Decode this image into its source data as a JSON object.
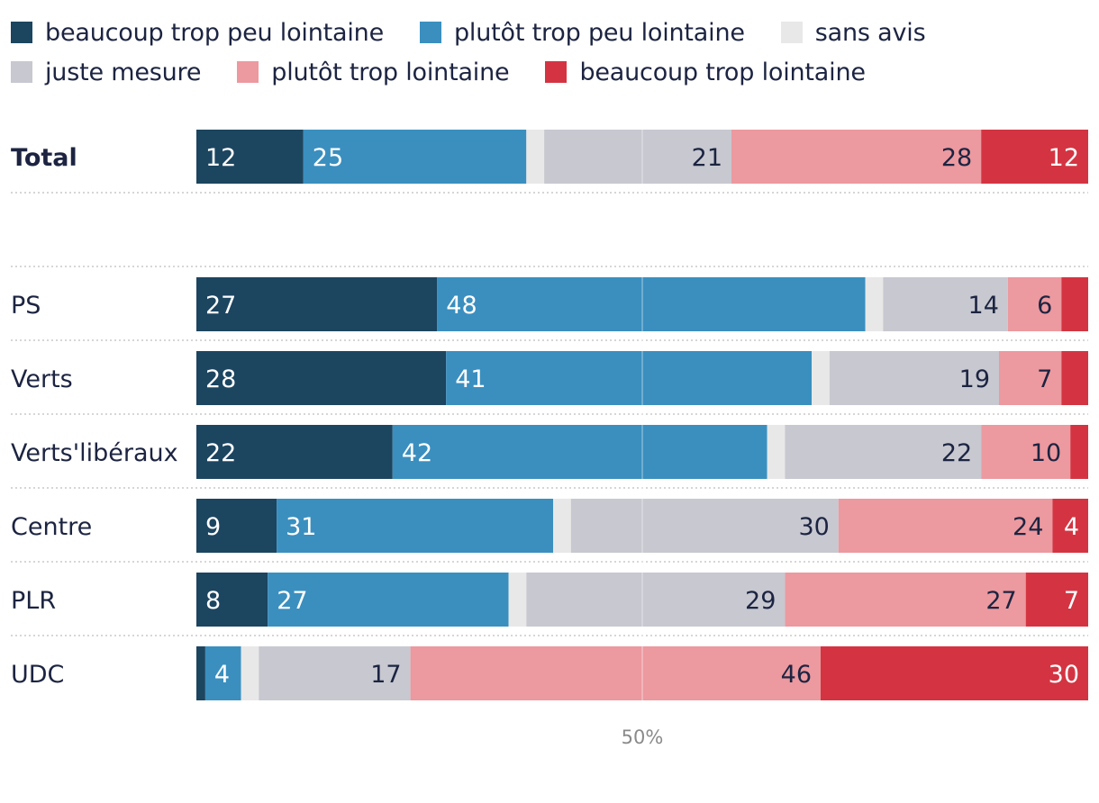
{
  "chart_data": {
    "type": "bar",
    "orientation": "horizontal-stacked",
    "categories": [
      "beaucoup trop peu lointaine",
      "plutôt trop peu lointaine",
      "sans avis",
      "juste mesure",
      "plutôt trop lointaine",
      "beaucoup trop lointaine"
    ],
    "colors": [
      "#1c4560",
      "#3a8fbf",
      "#e8e8e8",
      "#c7c8d0",
      "#ec999f",
      "#d43442"
    ],
    "label_colors": [
      "#ffffff",
      "#ffffff",
      "#1c2441",
      "#1c2441",
      "#1c2441",
      "#ffffff"
    ],
    "xlim": [
      0,
      100
    ],
    "axis_tick": "50%",
    "axis_tick_value": 50,
    "rows": [
      {
        "name": "Total",
        "bold": true,
        "values": [
          12,
          25,
          2,
          21,
          28,
          12
        ],
        "labels": [
          "12",
          "25",
          "",
          "21",
          "28",
          "12"
        ]
      },
      {
        "name": "PS",
        "bold": false,
        "values": [
          27,
          48,
          2,
          14,
          6,
          3
        ],
        "labels": [
          "27",
          "48",
          "",
          "14",
          "6",
          ""
        ]
      },
      {
        "name": "Verts",
        "bold": false,
        "values": [
          28,
          41,
          2,
          19,
          7,
          3
        ],
        "labels": [
          "28",
          "41",
          "",
          "19",
          "7",
          ""
        ]
      },
      {
        "name": "Verts'libéraux",
        "bold": false,
        "values": [
          22,
          42,
          2,
          22,
          10,
          2
        ],
        "labels": [
          "22",
          "42",
          "",
          "22",
          "10",
          ""
        ]
      },
      {
        "name": "Centre",
        "bold": false,
        "values": [
          9,
          31,
          2,
          30,
          24,
          4
        ],
        "labels": [
          "9",
          "31",
          "",
          "30",
          "24",
          "4"
        ]
      },
      {
        "name": "PLR",
        "bold": false,
        "values": [
          8,
          27,
          2,
          29,
          27,
          7
        ],
        "labels": [
          "8",
          "27",
          "",
          "29",
          "27",
          "7"
        ]
      },
      {
        "name": "UDC",
        "bold": false,
        "values": [
          1,
          4,
          2,
          17,
          46,
          30
        ],
        "labels": [
          "",
          "4",
          "",
          "17",
          "46",
          "30"
        ]
      }
    ]
  }
}
